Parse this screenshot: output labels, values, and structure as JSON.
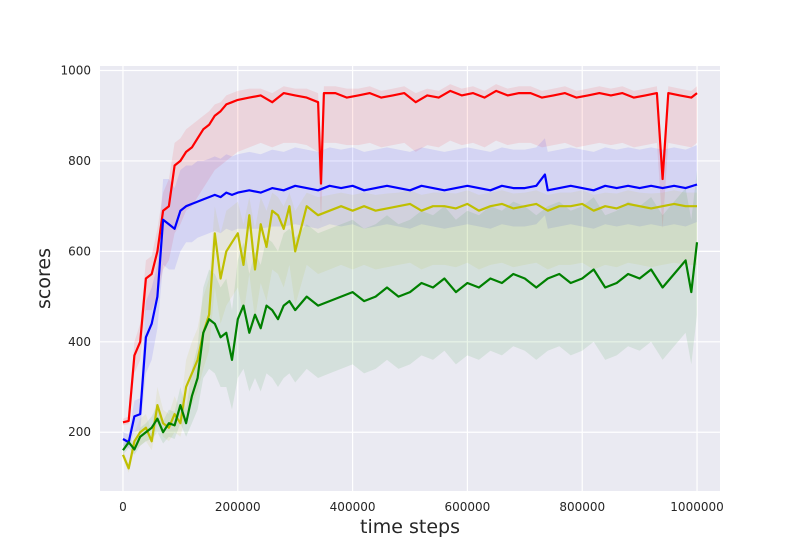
{
  "chart_data": {
    "type": "line",
    "title": "",
    "xlabel": "time steps",
    "ylabel": "scores",
    "xlim": [
      -40000,
      1040000
    ],
    "ylim": [
      70,
      1010
    ],
    "x_ticks": [
      0,
      200000,
      400000,
      600000,
      800000,
      1000000
    ],
    "y_ticks": [
      200,
      400,
      600,
      800,
      1000
    ],
    "x_tick_labels": [
      "0",
      "200000",
      "400000",
      "600000",
      "800000",
      "1000000"
    ],
    "y_tick_labels": [
      "200",
      "400",
      "600",
      "800",
      "1000"
    ],
    "grid": true,
    "legend": "none",
    "style": "seaborn-darkgrid",
    "colors": {
      "background": "#eaeaf2",
      "grid": "#ffffff"
    },
    "series": [
      {
        "color": "#ff0000",
        "band_color": "#ff0000",
        "x": [
          0,
          10000,
          20000,
          30000,
          40000,
          50000,
          60000,
          70000,
          80000,
          90000,
          100000,
          110000,
          120000,
          130000,
          140000,
          150000,
          160000,
          170000,
          180000,
          190000,
          200000,
          220000,
          240000,
          260000,
          280000,
          300000,
          320000,
          340000,
          345000,
          350000,
          370000,
          390000,
          410000,
          430000,
          450000,
          470000,
          490000,
          510000,
          530000,
          550000,
          570000,
          590000,
          610000,
          630000,
          650000,
          670000,
          690000,
          710000,
          730000,
          750000,
          770000,
          790000,
          810000,
          830000,
          850000,
          870000,
          890000,
          910000,
          930000,
          940000,
          950000,
          970000,
          990000,
          1000000
        ],
        "y": [
          222,
          225,
          370,
          400,
          540,
          550,
          600,
          690,
          700,
          790,
          800,
          820,
          830,
          850,
          870,
          880,
          900,
          910,
          925,
          930,
          935,
          940,
          945,
          930,
          950,
          945,
          940,
          930,
          750,
          950,
          950,
          940,
          945,
          950,
          940,
          945,
          950,
          930,
          945,
          940,
          955,
          945,
          950,
          940,
          955,
          945,
          950,
          950,
          940,
          945,
          950,
          940,
          945,
          950,
          945,
          950,
          940,
          945,
          950,
          760,
          950,
          945,
          940,
          950
        ],
        "lower": [
          215,
          218,
          330,
          360,
          470,
          470,
          500,
          560,
          580,
          640,
          660,
          690,
          700,
          720,
          740,
          760,
          780,
          790,
          800,
          810,
          820,
          830,
          840,
          830,
          840,
          840,
          835,
          820,
          660,
          840,
          840,
          835,
          835,
          840,
          830,
          835,
          840,
          820,
          835,
          830,
          845,
          835,
          840,
          830,
          845,
          835,
          840,
          840,
          830,
          835,
          840,
          830,
          835,
          840,
          835,
          840,
          830,
          835,
          840,
          650,
          840,
          835,
          830,
          840
        ],
        "upper": [
          230,
          235,
          400,
          440,
          580,
          590,
          650,
          730,
          760,
          840,
          850,
          870,
          880,
          890,
          900,
          910,
          925,
          930,
          945,
          950,
          955,
          960,
          960,
          950,
          965,
          960,
          960,
          950,
          810,
          965,
          965,
          960,
          960,
          965,
          955,
          960,
          965,
          950,
          960,
          955,
          970,
          960,
          965,
          955,
          970,
          960,
          965,
          965,
          955,
          960,
          965,
          955,
          960,
          965,
          960,
          965,
          955,
          960,
          965,
          800,
          965,
          960,
          955,
          965
        ]
      },
      {
        "color": "#0000ff",
        "band_color": "#0000ff",
        "x": [
          0,
          10000,
          20000,
          30000,
          40000,
          50000,
          60000,
          70000,
          80000,
          90000,
          100000,
          110000,
          120000,
          130000,
          140000,
          150000,
          160000,
          170000,
          180000,
          190000,
          200000,
          220000,
          240000,
          260000,
          280000,
          300000,
          320000,
          340000,
          360000,
          380000,
          400000,
          420000,
          440000,
          460000,
          480000,
          500000,
          520000,
          540000,
          560000,
          580000,
          600000,
          620000,
          640000,
          660000,
          680000,
          700000,
          720000,
          735000,
          740000,
          760000,
          780000,
          800000,
          820000,
          840000,
          860000,
          880000,
          900000,
          920000,
          940000,
          960000,
          980000,
          1000000
        ],
        "y": [
          185,
          178,
          235,
          240,
          410,
          440,
          500,
          670,
          660,
          650,
          690,
          700,
          705,
          710,
          715,
          720,
          725,
          720,
          730,
          725,
          730,
          735,
          730,
          740,
          735,
          745,
          740,
          735,
          745,
          740,
          745,
          735,
          740,
          745,
          740,
          735,
          745,
          740,
          735,
          740,
          745,
          740,
          735,
          745,
          740,
          740,
          745,
          770,
          735,
          740,
          745,
          740,
          735,
          745,
          740,
          745,
          740,
          745,
          740,
          745,
          740,
          748
        ],
        "lower": [
          170,
          165,
          200,
          205,
          330,
          360,
          430,
          570,
          560,
          560,
          600,
          620,
          620,
          630,
          635,
          640,
          645,
          640,
          650,
          645,
          650,
          650,
          650,
          655,
          655,
          660,
          655,
          650,
          660,
          655,
          660,
          650,
          655,
          660,
          655,
          650,
          660,
          655,
          650,
          655,
          660,
          655,
          650,
          660,
          655,
          655,
          660,
          680,
          650,
          655,
          660,
          655,
          650,
          660,
          655,
          660,
          655,
          660,
          655,
          660,
          655,
          665
        ],
        "upper": [
          200,
          195,
          270,
          275,
          490,
          520,
          570,
          760,
          760,
          740,
          780,
          790,
          790,
          800,
          800,
          805,
          810,
          805,
          815,
          810,
          815,
          820,
          815,
          825,
          820,
          830,
          825,
          820,
          830,
          825,
          830,
          820,
          825,
          830,
          825,
          820,
          830,
          825,
          820,
          825,
          830,
          825,
          820,
          830,
          825,
          825,
          830,
          850,
          820,
          825,
          830,
          825,
          820,
          830,
          825,
          830,
          825,
          830,
          825,
          830,
          825,
          835
        ]
      },
      {
        "color": "#bfbf00",
        "band_color": "#bfbf00",
        "x": [
          0,
          10000,
          20000,
          30000,
          40000,
          50000,
          60000,
          70000,
          80000,
          90000,
          100000,
          110000,
          120000,
          130000,
          140000,
          150000,
          160000,
          170000,
          180000,
          190000,
          200000,
          210000,
          220000,
          230000,
          240000,
          250000,
          260000,
          270000,
          280000,
          290000,
          300000,
          320000,
          340000,
          360000,
          380000,
          400000,
          420000,
          440000,
          460000,
          480000,
          500000,
          520000,
          540000,
          560000,
          580000,
          600000,
          620000,
          640000,
          660000,
          680000,
          700000,
          720000,
          740000,
          760000,
          780000,
          800000,
          820000,
          840000,
          860000,
          880000,
          900000,
          920000,
          940000,
          960000,
          980000,
          1000000
        ],
        "y": [
          150,
          120,
          180,
          200,
          210,
          180,
          260,
          220,
          210,
          240,
          220,
          300,
          330,
          360,
          420,
          460,
          640,
          540,
          600,
          620,
          640,
          570,
          680,
          560,
          660,
          610,
          690,
          680,
          650,
          700,
          600,
          700,
          680,
          690,
          700,
          690,
          700,
          690,
          695,
          700,
          705,
          690,
          700,
          700,
          695,
          705,
          690,
          700,
          705,
          695,
          700,
          705,
          690,
          700,
          700,
          705,
          690,
          700,
          695,
          705,
          700,
          695,
          700,
          705,
          700,
          700
        ],
        "lower": [
          140,
          110,
          160,
          170,
          180,
          160,
          220,
          190,
          180,
          200,
          190,
          240,
          260,
          290,
          340,
          380,
          520,
          440,
          480,
          500,
          520,
          460,
          550,
          450,
          530,
          490,
          560,
          550,
          520,
          570,
          480,
          570,
          550,
          560,
          570,
          560,
          570,
          560,
          565,
          570,
          575,
          560,
          570,
          570,
          565,
          575,
          560,
          570,
          575,
          565,
          570,
          575,
          560,
          570,
          570,
          575,
          560,
          570,
          565,
          575,
          570,
          565,
          570,
          575,
          570,
          570
        ],
        "upper": [
          160,
          130,
          200,
          230,
          240,
          200,
          300,
          250,
          240,
          280,
          250,
          360,
          400,
          430,
          500,
          540,
          700,
          640,
          690,
          700,
          710,
          660,
          720,
          650,
          720,
          690,
          730,
          720,
          700,
          730,
          690,
          730,
          720,
          725,
          730,
          725,
          730,
          725,
          728,
          730,
          735,
          725,
          730,
          730,
          728,
          735,
          725,
          730,
          735,
          728,
          730,
          735,
          725,
          730,
          730,
          735,
          725,
          730,
          728,
          735,
          730,
          728,
          730,
          735,
          730,
          730
        ]
      },
      {
        "color": "#008000",
        "band_color": "#008000",
        "x": [
          0,
          10000,
          20000,
          30000,
          40000,
          50000,
          60000,
          70000,
          80000,
          90000,
          100000,
          110000,
          120000,
          130000,
          140000,
          150000,
          160000,
          170000,
          180000,
          190000,
          200000,
          210000,
          220000,
          230000,
          240000,
          250000,
          260000,
          270000,
          280000,
          290000,
          300000,
          320000,
          340000,
          360000,
          380000,
          400000,
          420000,
          440000,
          460000,
          480000,
          500000,
          520000,
          540000,
          560000,
          580000,
          600000,
          620000,
          640000,
          660000,
          680000,
          700000,
          720000,
          740000,
          760000,
          780000,
          800000,
          820000,
          840000,
          860000,
          880000,
          900000,
          920000,
          940000,
          960000,
          980000,
          990000,
          1000000
        ],
        "y": [
          160,
          178,
          162,
          190,
          200,
          210,
          230,
          200,
          220,
          215,
          260,
          220,
          280,
          320,
          420,
          450,
          440,
          410,
          420,
          360,
          450,
          480,
          420,
          460,
          430,
          480,
          470,
          450,
          480,
          490,
          470,
          500,
          480,
          490,
          500,
          510,
          490,
          500,
          520,
          500,
          510,
          530,
          520,
          540,
          510,
          530,
          520,
          540,
          530,
          550,
          540,
          520,
          540,
          550,
          530,
          540,
          560,
          520,
          530,
          550,
          540,
          560,
          520,
          550,
          580,
          510,
          620
        ],
        "lower": [
          150,
          165,
          150,
          170,
          180,
          185,
          200,
          175,
          190,
          185,
          220,
          190,
          220,
          250,
          320,
          340,
          330,
          300,
          300,
          250,
          320,
          340,
          290,
          320,
          290,
          330,
          320,
          300,
          320,
          330,
          310,
          340,
          320,
          330,
          340,
          350,
          330,
          340,
          360,
          340,
          350,
          370,
          360,
          380,
          350,
          370,
          360,
          380,
          370,
          390,
          380,
          360,
          380,
          390,
          370,
          380,
          400,
          360,
          370,
          390,
          380,
          400,
          360,
          390,
          420,
          350,
          460
        ],
        "upper": [
          170,
          190,
          175,
          210,
          220,
          235,
          260,
          225,
          250,
          245,
          300,
          250,
          340,
          390,
          520,
          560,
          550,
          520,
          540,
          470,
          580,
          620,
          550,
          600,
          570,
          630,
          620,
          600,
          640,
          650,
          630,
          660,
          640,
          650,
          660,
          670,
          650,
          660,
          680,
          660,
          670,
          690,
          680,
          700,
          670,
          690,
          680,
          700,
          690,
          710,
          700,
          680,
          700,
          710,
          690,
          700,
          720,
          680,
          690,
          710,
          700,
          720,
          680,
          710,
          740,
          670,
          780
        ]
      }
    ]
  }
}
